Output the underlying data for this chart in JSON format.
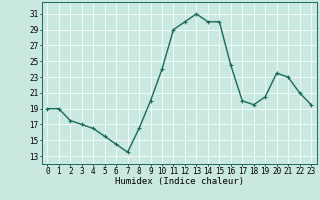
{
  "x": [
    0,
    1,
    2,
    3,
    4,
    5,
    6,
    7,
    8,
    9,
    10,
    11,
    12,
    13,
    14,
    15,
    16,
    17,
    18,
    19,
    20,
    21,
    22,
    23
  ],
  "y": [
    19,
    19,
    17.5,
    17,
    16.5,
    15.5,
    14.5,
    13.5,
    16.5,
    20,
    24,
    29,
    30,
    31,
    30,
    30,
    24.5,
    20,
    19.5,
    20.5,
    23.5,
    23,
    21,
    19.5
  ],
  "line_color": "#1a6b5a",
  "marker": "+",
  "marker_size": 3,
  "bg_color": "#c8e8e0",
  "grid_color": "#ffffff",
  "xlabel": "Humidex (Indice chaleur)",
  "xlim": [
    -0.5,
    23.5
  ],
  "ylim": [
    12,
    32.5
  ],
  "yticks": [
    13,
    15,
    17,
    19,
    21,
    23,
    25,
    27,
    29,
    31
  ],
  "xticks": [
    0,
    1,
    2,
    3,
    4,
    5,
    6,
    7,
    8,
    9,
    10,
    11,
    12,
    13,
    14,
    15,
    16,
    17,
    18,
    19,
    20,
    21,
    22,
    23
  ],
  "tick_fontsize": 5.5,
  "xlabel_fontsize": 6.5,
  "line_width": 1.0
}
